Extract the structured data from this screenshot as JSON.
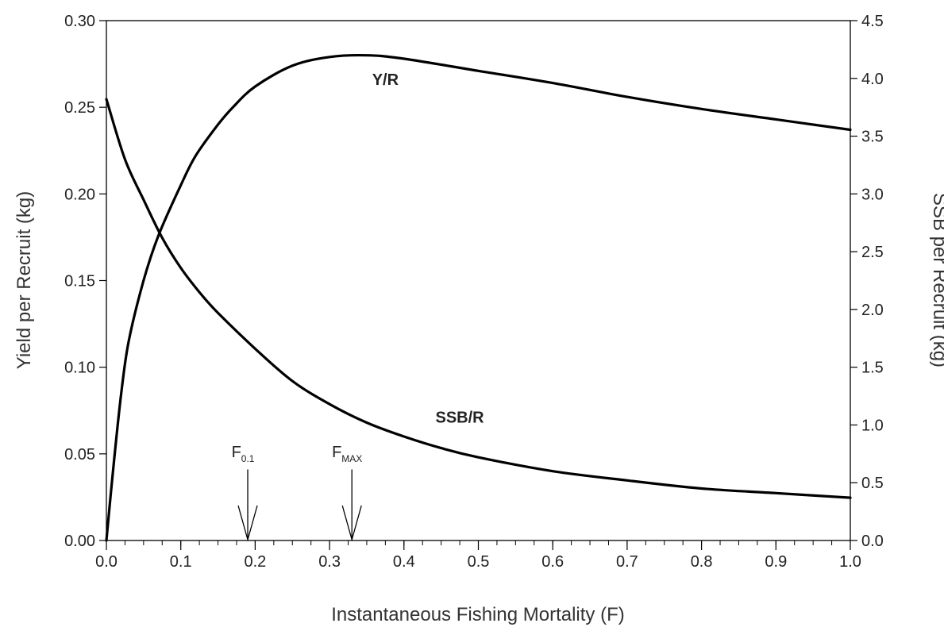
{
  "chart_data": {
    "type": "line",
    "title": "",
    "xlabel": "Instantaneous Fishing Mortality (F)",
    "ylabel_left": "Yield per Recruit (kg)",
    "ylabel_right": "SSB per Recruit (kg)",
    "xlim": [
      0.0,
      1.0
    ],
    "ylim_left": [
      0.0,
      0.3
    ],
    "ylim_right": [
      0.0,
      4.5
    ],
    "grid": false,
    "x_ticks": [
      {
        "value": 0.0,
        "label": "0.0"
      },
      {
        "value": 0.1,
        "label": "0.1"
      },
      {
        "value": 0.2,
        "label": "0.2"
      },
      {
        "value": 0.3,
        "label": "0.3"
      },
      {
        "value": 0.4,
        "label": "0.4"
      },
      {
        "value": 0.5,
        "label": "0.5"
      },
      {
        "value": 0.6,
        "label": "0.6"
      },
      {
        "value": 0.7,
        "label": "0.7"
      },
      {
        "value": 0.8,
        "label": "0.8"
      },
      {
        "value": 0.9,
        "label": "0.9"
      },
      {
        "value": 1.0,
        "label": "1.0"
      }
    ],
    "y_ticks_left": [
      {
        "value": 0.0,
        "label": "0.00"
      },
      {
        "value": 0.05,
        "label": "0.05"
      },
      {
        "value": 0.1,
        "label": "0.10"
      },
      {
        "value": 0.15,
        "label": "0.15"
      },
      {
        "value": 0.2,
        "label": "0.20"
      },
      {
        "value": 0.25,
        "label": "0.25"
      },
      {
        "value": 0.3,
        "label": "0.30"
      }
    ],
    "y_ticks_right": [
      {
        "value": 0.0,
        "label": "0.0"
      },
      {
        "value": 0.5,
        "label": "0.5"
      },
      {
        "value": 1.0,
        "label": "1.0"
      },
      {
        "value": 1.5,
        "label": "1.5"
      },
      {
        "value": 2.0,
        "label": "2.0"
      },
      {
        "value": 2.5,
        "label": "2.5"
      },
      {
        "value": 3.0,
        "label": "3.0"
      },
      {
        "value": 3.5,
        "label": "3.5"
      },
      {
        "value": 4.0,
        "label": "4.0"
      },
      {
        "value": 4.5,
        "label": "4.5"
      }
    ],
    "x_minor_step": 0.025,
    "series": [
      {
        "name": "Y/R",
        "axis": "left",
        "x": [
          0.0,
          0.01,
          0.02,
          0.03,
          0.05,
          0.07,
          0.1,
          0.12,
          0.15,
          0.17,
          0.2,
          0.25,
          0.3,
          0.35,
          0.4,
          0.5,
          0.6,
          0.7,
          0.8,
          0.9,
          1.0
        ],
        "values": [
          0.0,
          0.045,
          0.085,
          0.115,
          0.15,
          0.176,
          0.205,
          0.222,
          0.24,
          0.25,
          0.262,
          0.274,
          0.279,
          0.28,
          0.278,
          0.271,
          0.264,
          0.256,
          0.249,
          0.243,
          0.237
        ]
      },
      {
        "name": "SSB/R",
        "axis": "right",
        "x": [
          0.0,
          0.025,
          0.05,
          0.075,
          0.1,
          0.125,
          0.15,
          0.2,
          0.25,
          0.3,
          0.35,
          0.4,
          0.45,
          0.5,
          0.6,
          0.7,
          0.8,
          0.9,
          1.0
        ],
        "values": [
          3.82,
          3.3,
          2.95,
          2.62,
          2.36,
          2.15,
          1.97,
          1.66,
          1.38,
          1.18,
          1.02,
          0.9,
          0.8,
          0.72,
          0.6,
          0.52,
          0.45,
          0.41,
          0.37
        ]
      }
    ],
    "series_labels": [
      {
        "text": "Y/R",
        "x": 0.375,
        "y_left": 0.263
      },
      {
        "text": "SSB/R",
        "x": 0.475,
        "y_left": 0.068
      }
    ],
    "annotations": [
      {
        "main": "F",
        "sub": "0.1",
        "x": 0.19,
        "y_left": 0.048,
        "arrow_from_y_left": 0.041
      },
      {
        "main": "F",
        "sub": "MAX",
        "x": 0.33,
        "y_left": 0.048,
        "arrow_from_y_left": 0.041
      }
    ]
  }
}
